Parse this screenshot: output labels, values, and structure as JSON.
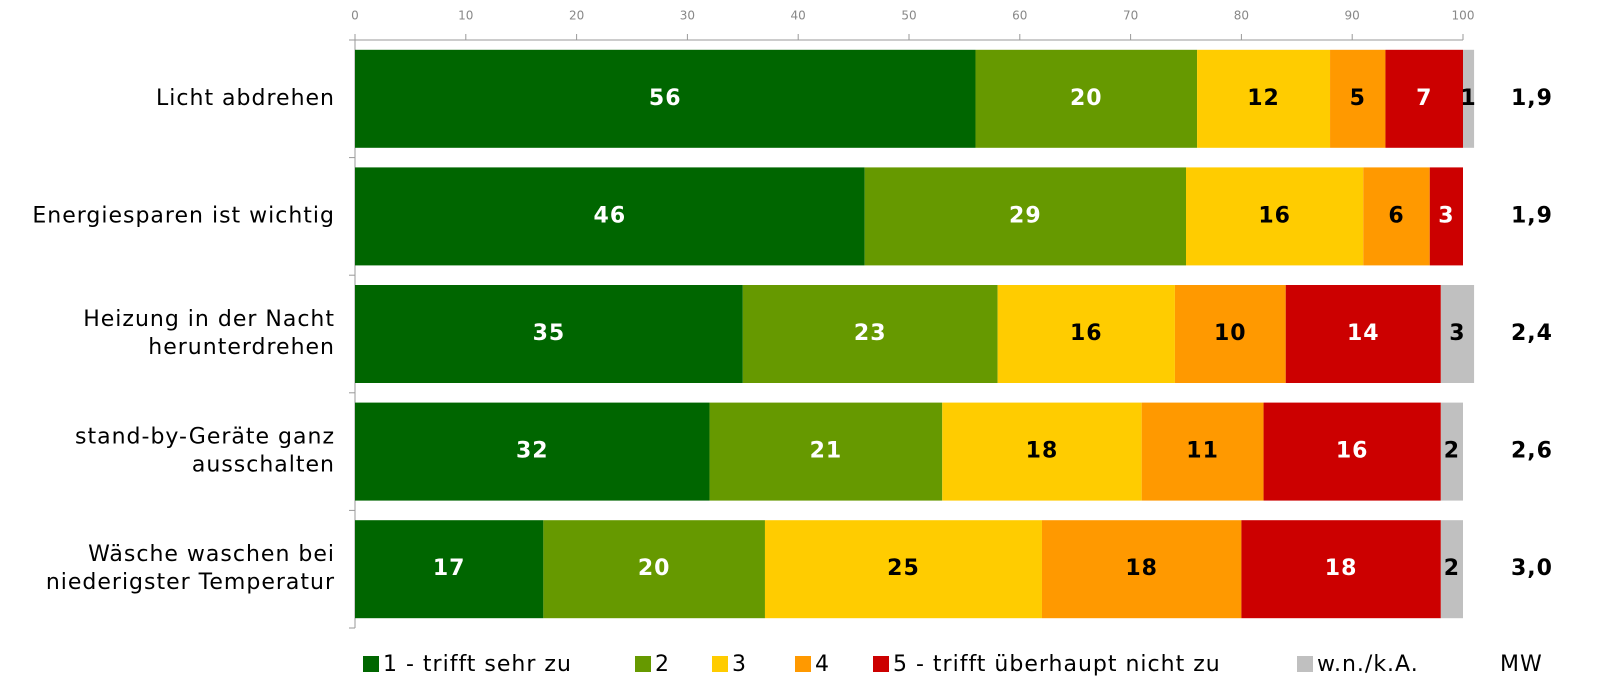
{
  "chart_data": {
    "type": "stacked-bar-horizontal",
    "categories": [
      "Licht abdrehen",
      "Energiesparen ist wichtig",
      "Heizung in der Nacht\nherunterdrehen",
      "stand-by-Geräte ganz\nausschalten",
      "Wäsche waschen bei\nniederigster Temperatur"
    ],
    "series": [
      {
        "name": "1 - trifft sehr zu",
        "color": "#006600",
        "label_color": "#ffffff",
        "values": [
          56,
          46,
          35,
          32,
          17
        ]
      },
      {
        "name": "2",
        "color": "#669900",
        "label_color": "#ffffff",
        "values": [
          20,
          29,
          23,
          21,
          20
        ]
      },
      {
        "name": "3",
        "color": "#ffcc00",
        "label_color": "#000000",
        "values": [
          12,
          16,
          16,
          18,
          25
        ]
      },
      {
        "name": "4",
        "color": "#ff9900",
        "label_color": "#000000",
        "values": [
          5,
          6,
          10,
          11,
          18
        ]
      },
      {
        "name": "5 - trifft überhaupt nicht zu",
        "color": "#cc0000",
        "label_color": "#ffffff",
        "values": [
          7,
          3,
          14,
          16,
          18
        ]
      },
      {
        "name": "w.n./k.A.",
        "color": "#c0c0c0",
        "label_color": "#000000",
        "values": [
          1,
          null,
          3,
          2,
          2
        ]
      }
    ],
    "mw": {
      "name": "MW",
      "values": [
        1.9,
        1.9,
        2.4,
        2.6,
        3.0
      ],
      "value_labels": [
        "1,9",
        "1,9",
        "2,4",
        "2,6",
        "3,0"
      ]
    },
    "xlim": [
      0,
      100
    ],
    "xticks": [
      0,
      10,
      20,
      30,
      40,
      50,
      60,
      70,
      80,
      90,
      100
    ]
  }
}
